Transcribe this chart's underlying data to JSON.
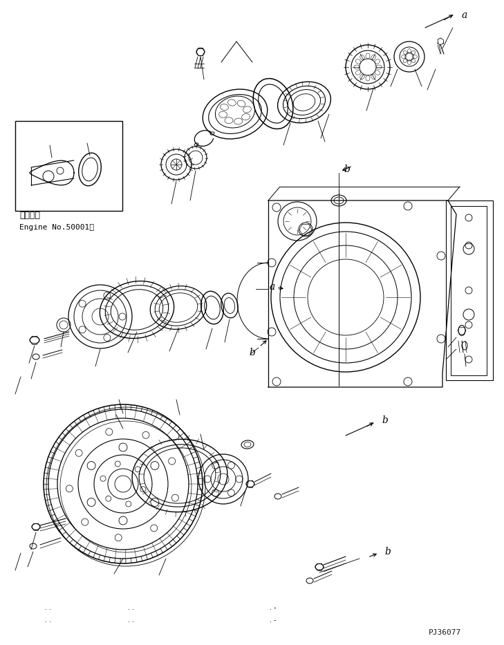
{
  "bg_color": "#ffffff",
  "line_color": "#000000",
  "fig_width": 7.29,
  "fig_height": 9.33,
  "dpi": 100,
  "text_japanese": "適用号機",
  "text_engine": "Engine No.50001～",
  "watermark": "PJ36077"
}
